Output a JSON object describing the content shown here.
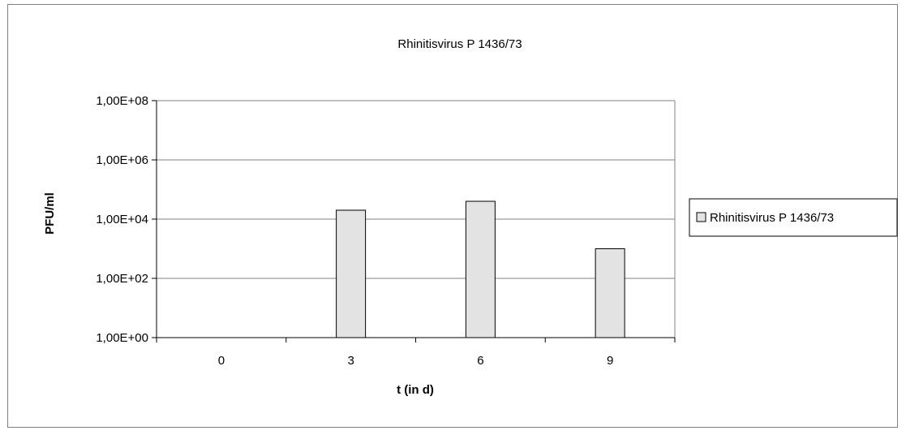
{
  "chart_data": {
    "type": "bar",
    "title": "Rhinitisvirus P 1436/73",
    "xlabel": "t (in d)",
    "ylabel": "PFU/ml",
    "categories": [
      "0",
      "3",
      "6",
      "9"
    ],
    "series": [
      {
        "name": "Rhinitisvirus P 1436/73",
        "values": [
          1,
          20000,
          40000,
          1000
        ]
      }
    ],
    "yscale": "log",
    "ylim": [
      1,
      100000000
    ],
    "yticks": [
      1,
      100,
      10000,
      1000000,
      100000000
    ],
    "ytick_labels": [
      "1,00E+00",
      "1,00E+02",
      "1,00E+04",
      "1,00E+06",
      "1,00E+08"
    ],
    "grid": true,
    "legend": "right",
    "colors": {
      "bar_fill": "#e3e3e3",
      "bar_stroke": "#000000",
      "grid": "#808080"
    }
  }
}
